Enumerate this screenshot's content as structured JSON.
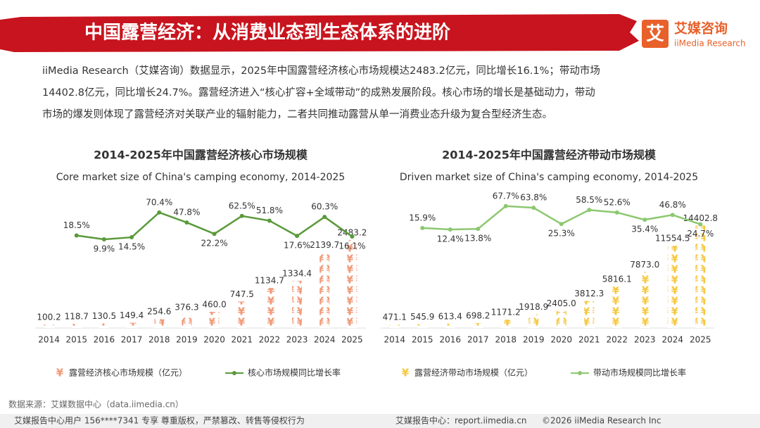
{
  "header": {
    "title": "中国露营经济：从消费业态到生态体系的进阶",
    "logo_cn": "艾媒咨询",
    "logo_en": "iiMedia Research",
    "logo_mark": "艾"
  },
  "paragraph": [
    "iiMedia Research（艾媒咨询）数据显示，2025年中国露营经济核心市场规模达2483.2亿元，同比增长16.1%；带动市场",
    "14402.8亿元，同比增长24.7%。露营经济进入“核心扩容+全域带动”的成熟发展阶段。核心市场的增长是基础动力，带动",
    "市场的爆发则体现了露营经济对关联产业的辐射能力，二者共同推动露营从单一消费业态升级为复合型经济生态。"
  ],
  "chart_data": [
    {
      "type": "bar_line",
      "title": "2014-2025年中国露营经济核心市场规模",
      "subtitle": "Core market size of China's camping economy, 2014-2025",
      "categories": [
        "2014",
        "2015",
        "2016",
        "2017",
        "2018",
        "2019",
        "2020",
        "2021",
        "2022",
        "2023",
        "2024",
        "2025"
      ],
      "ylim": [
        0,
        3700
      ],
      "y2lim": [
        -190,
        105
      ],
      "series": [
        {
          "name": "露营经济核心市场规模（亿元）",
          "color": "#f09a78",
          "values": [
            100.2,
            118.7,
            130.5,
            149.4,
            254.6,
            376.3,
            460.0,
            747.5,
            1134.7,
            1334.4,
            2139.7,
            2483.2
          ],
          "value_labels": [
            "100.2",
            "118.7",
            "130.5",
            "149.4",
            "254.6",
            "376.3",
            "460.0",
            "747.5",
            "1134.7",
            "1334.4",
            "2139.7",
            "2483.2"
          ]
        },
        {
          "name": "核心市场规模同比增长率",
          "color": "#5a9a3a",
          "axis": "y2",
          "values": [
            null,
            18.5,
            9.9,
            14.5,
            70.4,
            47.8,
            22.2,
            62.5,
            51.8,
            17.6,
            60.3,
            16.1
          ],
          "value_labels": [
            null,
            "18.5%",
            "9.9%",
            "14.5%",
            "70.4%",
            "47.8%",
            "22.2%",
            "62.5%",
            "51.8%",
            "17.6%",
            "60.3%",
            "16.1%"
          ]
        }
      ]
    },
    {
      "type": "bar_line",
      "title": "2014-2025年中国露营经济带动市场规模",
      "subtitle": "Driven market size of China's camping economy, 2014-2025",
      "categories": [
        "2014",
        "2015",
        "2016",
        "2017",
        "2018",
        "2019",
        "2020",
        "2021",
        "2022",
        "2023",
        "2024",
        "2025"
      ],
      "ylim": [
        0,
        18400
      ],
      "y2lim": [
        -221,
        89
      ],
      "series": [
        {
          "name": "露营经济带动市场规模（亿元）",
          "color": "#f5c842",
          "values": [
            471.1,
            545.9,
            613.4,
            698.2,
            1171.2,
            1918.9,
            2405.0,
            3812.3,
            5816.1,
            7873.0,
            11554.5,
            14402.8
          ],
          "value_labels": [
            "471.1",
            "545.9",
            "613.4",
            "698.2",
            "1171.2",
            "1918.9",
            "2405.0",
            "3812.3",
            "5816.1",
            "7873.0",
            "11554.5",
            "14402.8"
          ]
        },
        {
          "name": "带动市场规模同比增长率",
          "color": "#8cc870",
          "axis": "y2",
          "values": [
            null,
            15.9,
            12.4,
            13.8,
            67.7,
            63.8,
            25.3,
            58.5,
            52.6,
            35.4,
            46.8,
            24.7
          ],
          "value_labels": [
            null,
            "15.9%",
            "12.4%",
            "13.8%",
            "67.7%",
            "63.8%",
            "25.3%",
            "58.5%",
            "52.6%",
            "35.4%",
            "46.8%",
            "24.7%"
          ]
        }
      ]
    }
  ],
  "source": "数据来源：艾媒数据中心（data.iimedia.cn）",
  "footer": {
    "left": "艾媒报告中心用户 156****7341 专享 尊重版权，严禁篡改、转售等侵权行为",
    "center": "艾媒报告中心：report.iimedia.cn",
    "right": "©2026  iiMedia Research  Inc"
  }
}
